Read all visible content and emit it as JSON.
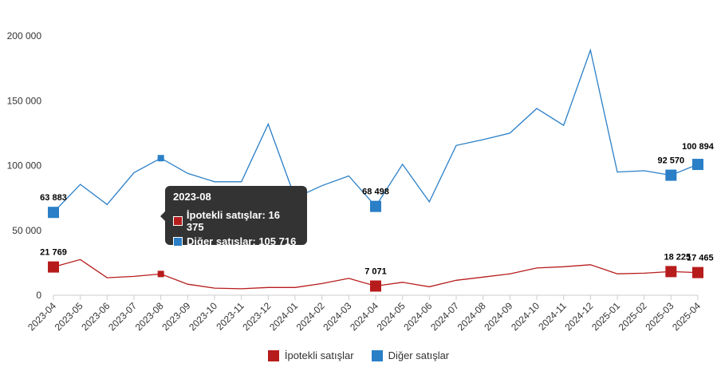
{
  "chart_data": {
    "type": "line",
    "title": "",
    "xlabel": "",
    "ylabel": "",
    "ylim": [
      0,
      200000
    ],
    "yticks": [
      0,
      50000,
      100000,
      150000,
      200000
    ],
    "ytick_labels": [
      "0",
      "50 000",
      "100 000",
      "150 000",
      "200 000"
    ],
    "grid": false,
    "legend_position": "bottom",
    "categories": [
      "2023-04",
      "2023-05",
      "2023-06",
      "2023-07",
      "2023-08",
      "2023-09",
      "2023-10",
      "2023-11",
      "2023-12",
      "2024-01",
      "2024-02",
      "2024-03",
      "2024-04",
      "2024-05",
      "2024-06",
      "2024-07",
      "2024-08",
      "2024-09",
      "2024-10",
      "2024-11",
      "2024-12",
      "2025-01",
      "2025-02",
      "2025-03",
      "2025-04"
    ],
    "series": [
      {
        "name": "İpotekli satışlar",
        "color": "#b71c1c",
        "values": [
          21769,
          27500,
          13500,
          14500,
          16375,
          8500,
          5500,
          5000,
          6000,
          6000,
          9000,
          13000,
          7071,
          10000,
          6500,
          11500,
          14000,
          16500,
          21000,
          22000,
          23500,
          16500,
          17000,
          18225,
          17465
        ]
      },
      {
        "name": "Diğer satışlar",
        "color": "#2a7fc7",
        "values": [
          63883,
          85500,
          70000,
          94500,
          105716,
          94000,
          87500,
          87500,
          132000,
          75000,
          84500,
          92000,
          68498,
          101000,
          72000,
          115500,
          120000,
          125000,
          144000,
          131000,
          189000,
          95000,
          96000,
          92570,
          100894
        ]
      }
    ],
    "data_labels": [
      {
        "series": 0,
        "index": 0,
        "text": "21 769"
      },
      {
        "series": 0,
        "index": 12,
        "text": "7 071"
      },
      {
        "series": 0,
        "index": 23,
        "text": "18 225"
      },
      {
        "series": 0,
        "index": 24,
        "text": "17 465"
      },
      {
        "series": 1,
        "index": 0,
        "text": "63 883"
      },
      {
        "series": 1,
        "index": 12,
        "text": "68 498"
      },
      {
        "series": 1,
        "index": 23,
        "text": "92 570"
      },
      {
        "series": 1,
        "index": 24,
        "text": "100 894"
      }
    ],
    "highlight_index": 4
  },
  "tooltip": {
    "title": "2023-08",
    "rows": [
      {
        "label": "İpotekli satışlar: 16 375"
      },
      {
        "label": "Diğer satışlar: 105 716"
      }
    ]
  }
}
